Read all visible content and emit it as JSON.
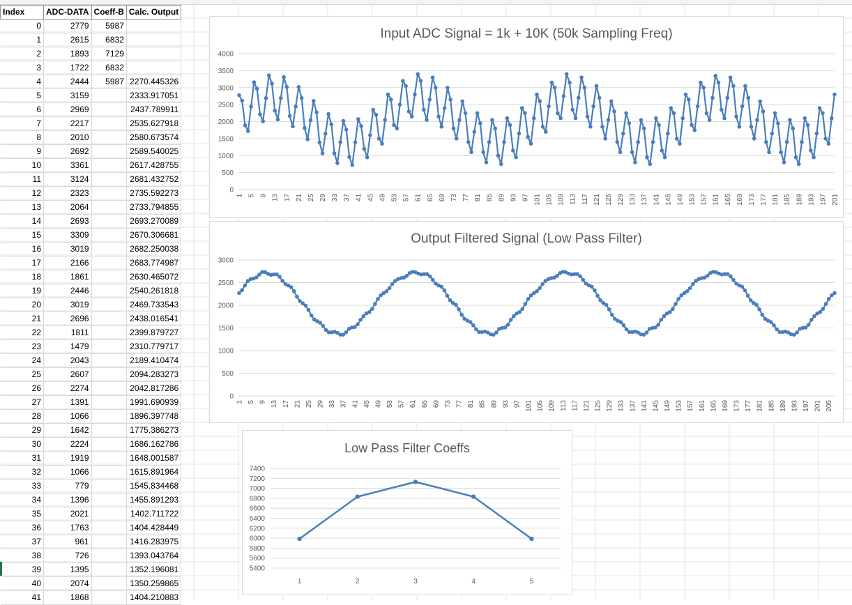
{
  "sheet": {
    "headers": [
      "Index",
      "ADC-DATA",
      "Coeff-B",
      "Calc. Output"
    ],
    "rows": [
      [
        "0",
        "2779",
        "5987",
        ""
      ],
      [
        "1",
        "2615",
        "6832",
        ""
      ],
      [
        "2",
        "1893",
        "7129",
        ""
      ],
      [
        "3",
        "1722",
        "6832",
        ""
      ],
      [
        "4",
        "2444",
        "5987",
        "2270.445326"
      ],
      [
        "5",
        "3159",
        "",
        "2333.917051"
      ],
      [
        "6",
        "2969",
        "",
        "2437.789911"
      ],
      [
        "7",
        "2217",
        "",
        "2535.627918"
      ],
      [
        "8",
        "2010",
        "",
        "2580.673574"
      ],
      [
        "9",
        "2692",
        "",
        "2589.540025"
      ],
      [
        "10",
        "3361",
        "",
        "2617.428755"
      ],
      [
        "11",
        "3124",
        "",
        "2681.432752"
      ],
      [
        "12",
        "2323",
        "",
        "2735.592273"
      ],
      [
        "13",
        "2064",
        "",
        "2733.794855"
      ],
      [
        "14",
        "2693",
        "",
        "2693.270089"
      ],
      [
        "15",
        "3309",
        "",
        "2670.306681"
      ],
      [
        "16",
        "3019",
        "",
        "2682.250038"
      ],
      [
        "17",
        "2166",
        "",
        "2683.774987"
      ],
      [
        "18",
        "1861",
        "",
        "2630.465072"
      ],
      [
        "19",
        "2446",
        "",
        "2540.261818"
      ],
      [
        "20",
        "3019",
        "",
        "2469.733543"
      ],
      [
        "21",
        "2696",
        "",
        "2438.016541"
      ],
      [
        "22",
        "1811",
        "",
        "2399.879727"
      ],
      [
        "23",
        "1479",
        "",
        "2310.779717"
      ],
      [
        "24",
        "2043",
        "",
        "2189.410474"
      ],
      [
        "25",
        "2607",
        "",
        "2094.283273"
      ],
      [
        "26",
        "2274",
        "",
        "2042.817286"
      ],
      [
        "27",
        "1391",
        "",
        "1991.690939"
      ],
      [
        "28",
        "1066",
        "",
        "1896.397748"
      ],
      [
        "29",
        "1642",
        "",
        "1775.386273"
      ],
      [
        "30",
        "2224",
        "",
        "1686.162786"
      ],
      [
        "31",
        "1919",
        "",
        "1648.001587"
      ],
      [
        "32",
        "1066",
        "",
        "1615.891964"
      ],
      [
        "33",
        "779",
        "",
        "1545.834468"
      ],
      [
        "34",
        "1396",
        "",
        "1455.891293"
      ],
      [
        "35",
        "2021",
        "",
        "1402.711722"
      ],
      [
        "36",
        "1763",
        "",
        "1404.428449"
      ],
      [
        "37",
        "961",
        "",
        "1416.283975"
      ],
      [
        "38",
        "726",
        "",
        "1393.043764"
      ],
      [
        "39",
        "1395",
        "",
        "1352.196081"
      ],
      [
        "40",
        "2074",
        "",
        "1350.259865"
      ],
      [
        "41",
        "1868",
        "",
        "1404.210883"
      ]
    ]
  },
  "chart_data": [
    {
      "type": "line",
      "title": "Input ADC Signal = 1k + 10K (50k Sampling Freq)",
      "ylim": [
        0,
        4000
      ],
      "yticks": [
        0,
        500,
        1000,
        1500,
        2000,
        2500,
        3000,
        3500,
        4000
      ],
      "x_first": 1,
      "x_last": 201,
      "x_label_step": 4,
      "values": [
        2779,
        2615,
        1893,
        1722,
        2444,
        3159,
        2969,
        2217,
        2010,
        2692,
        3361,
        3124,
        2323,
        2064,
        2693,
        3309,
        3019,
        2166,
        1861,
        2446,
        3019,
        2696,
        1811,
        1479,
        2043,
        2607,
        2274,
        1391,
        1066,
        1642,
        2224,
        1919,
        1066,
        779,
        1396,
        2021,
        1763,
        961,
        726,
        1395,
        2074,
        1868,
        1200,
        950,
        1600,
        2350,
        2200,
        1500,
        1350,
        2050,
        2800,
        2650,
        1900,
        1800,
        2500,
        3200,
        3050,
        2300,
        2150,
        2800,
        3400,
        3200,
        2350,
        2050,
        2650,
        3300,
        3000,
        2150,
        1850,
        2400,
        3000,
        2650,
        1800,
        1500,
        2050,
        2600,
        2250,
        1400,
        1100,
        1700,
        2250,
        1950,
        1100,
        800,
        1400,
        2050,
        1800,
        1000,
        750,
        1400,
        2100,
        1900,
        1150,
        950,
        1650,
        2400,
        2250,
        1550,
        1350,
        2100,
        2800,
        2600,
        1850,
        1700,
        2450,
        3150,
        3000,
        2250,
        2100,
        2750,
        3400,
        3150,
        2350,
        2100,
        2700,
        3300,
        3000,
        2150,
        1850,
        2450,
        3050,
        2700,
        1850,
        1500,
        2050,
        2600,
        2300,
        1400,
        1100,
        1650,
        2250,
        1950,
        1100,
        800,
        1400,
        2050,
        1800,
        950,
        750,
        1400,
        2100,
        1900,
        1150,
        950,
        1650,
        2400,
        2250,
        1500,
        1350,
        2100,
        2800,
        2650,
        1900,
        1750,
        2450,
        3150,
        3000,
        2250,
        2050,
        2700,
        3350,
        3150,
        2350,
        2100,
        2700,
        3300,
        3050,
        2150,
        1850,
        2450,
        3050,
        2700,
        1850,
        1500,
        2050,
        2600,
        2300,
        1400,
        1100,
        1650,
        2250,
        1950,
        1100,
        800,
        1400,
        2050,
        1800,
        950,
        750,
        1400,
        2100,
        1900,
        1150,
        950,
        1650,
        2400,
        2250,
        1500,
        1350,
        2100,
        2800
      ]
    },
    {
      "type": "line",
      "title": "Output Filtered Signal (Low Pass Filter)",
      "ylim": [
        0,
        3000
      ],
      "yticks": [
        0,
        500,
        1000,
        1500,
        2000,
        2500,
        3000
      ],
      "x_first": 1,
      "x_last": 201,
      "x_label_step": 4,
      "values": [
        2270,
        2334,
        2438,
        2536,
        2581,
        2590,
        2617,
        2681,
        2736,
        2734,
        2693,
        2670,
        2682,
        2684,
        2630,
        2540,
        2470,
        2438,
        2400,
        2311,
        2189,
        2094,
        2043,
        1992,
        1896,
        1775,
        1686,
        1648,
        1616,
        1546,
        1456,
        1403,
        1404,
        1416,
        1393,
        1352,
        1350,
        1404,
        1480,
        1510,
        1520,
        1580,
        1680,
        1760,
        1820,
        1850,
        1920,
        2030,
        2140,
        2220,
        2270,
        2310,
        2380,
        2470,
        2540,
        2580,
        2600,
        2610,
        2650,
        2710,
        2740,
        2730,
        2700,
        2680,
        2690,
        2690,
        2640,
        2560,
        2480,
        2440,
        2410,
        2330,
        2210,
        2110,
        2050,
        2010,
        1910,
        1790,
        1700,
        1660,
        1630,
        1560,
        1470,
        1410,
        1410,
        1420,
        1400,
        1360,
        1350,
        1400,
        1480,
        1500,
        1510,
        1570,
        1680,
        1760,
        1820,
        1850,
        1920,
        2030,
        2140,
        2220,
        2270,
        2310,
        2380,
        2470,
        2540,
        2580,
        2600,
        2610,
        2650,
        2710,
        2740,
        2730,
        2700,
        2680,
        2690,
        2690,
        2640,
        2560,
        2480,
        2440,
        2410,
        2330,
        2210,
        2110,
        2050,
        2010,
        1910,
        1790,
        1700,
        1660,
        1630,
        1560,
        1470,
        1410,
        1410,
        1420,
        1400,
        1360,
        1350,
        1400,
        1480,
        1500,
        1510,
        1570,
        1680,
        1760,
        1820,
        1850,
        1920,
        2030,
        2140,
        2220,
        2270,
        2310,
        2380,
        2470,
        2540,
        2580,
        2600,
        2610,
        2650,
        2710,
        2740,
        2730,
        2700,
        2680,
        2690,
        2690,
        2640,
        2560,
        2480,
        2440,
        2410,
        2330,
        2210,
        2110,
        2050,
        2010,
        1910,
        1790,
        1700,
        1660,
        1630,
        1560,
        1470,
        1410,
        1410,
        1420,
        1400,
        1360,
        1350,
        1400,
        1480,
        1500,
        1510,
        1570,
        1680,
        1760,
        1820,
        1850,
        1920,
        2030,
        2140,
        2220,
        2270
      ]
    },
    {
      "type": "line",
      "title": "Low Pass Filter Coeffs",
      "ylim": [
        5400,
        7400
      ],
      "yticks": [
        5400,
        5600,
        5800,
        6000,
        6200,
        6400,
        6600,
        6800,
        7000,
        7200,
        7400
      ],
      "categories": [
        "1",
        "2",
        "3",
        "4",
        "5"
      ],
      "values": [
        5987,
        6832,
        7129,
        6832,
        5987
      ]
    }
  ],
  "colors": {
    "series": "#4a7ebb",
    "grid": "#d9d9d9",
    "axis_text": "#595959",
    "title": "#595959"
  }
}
